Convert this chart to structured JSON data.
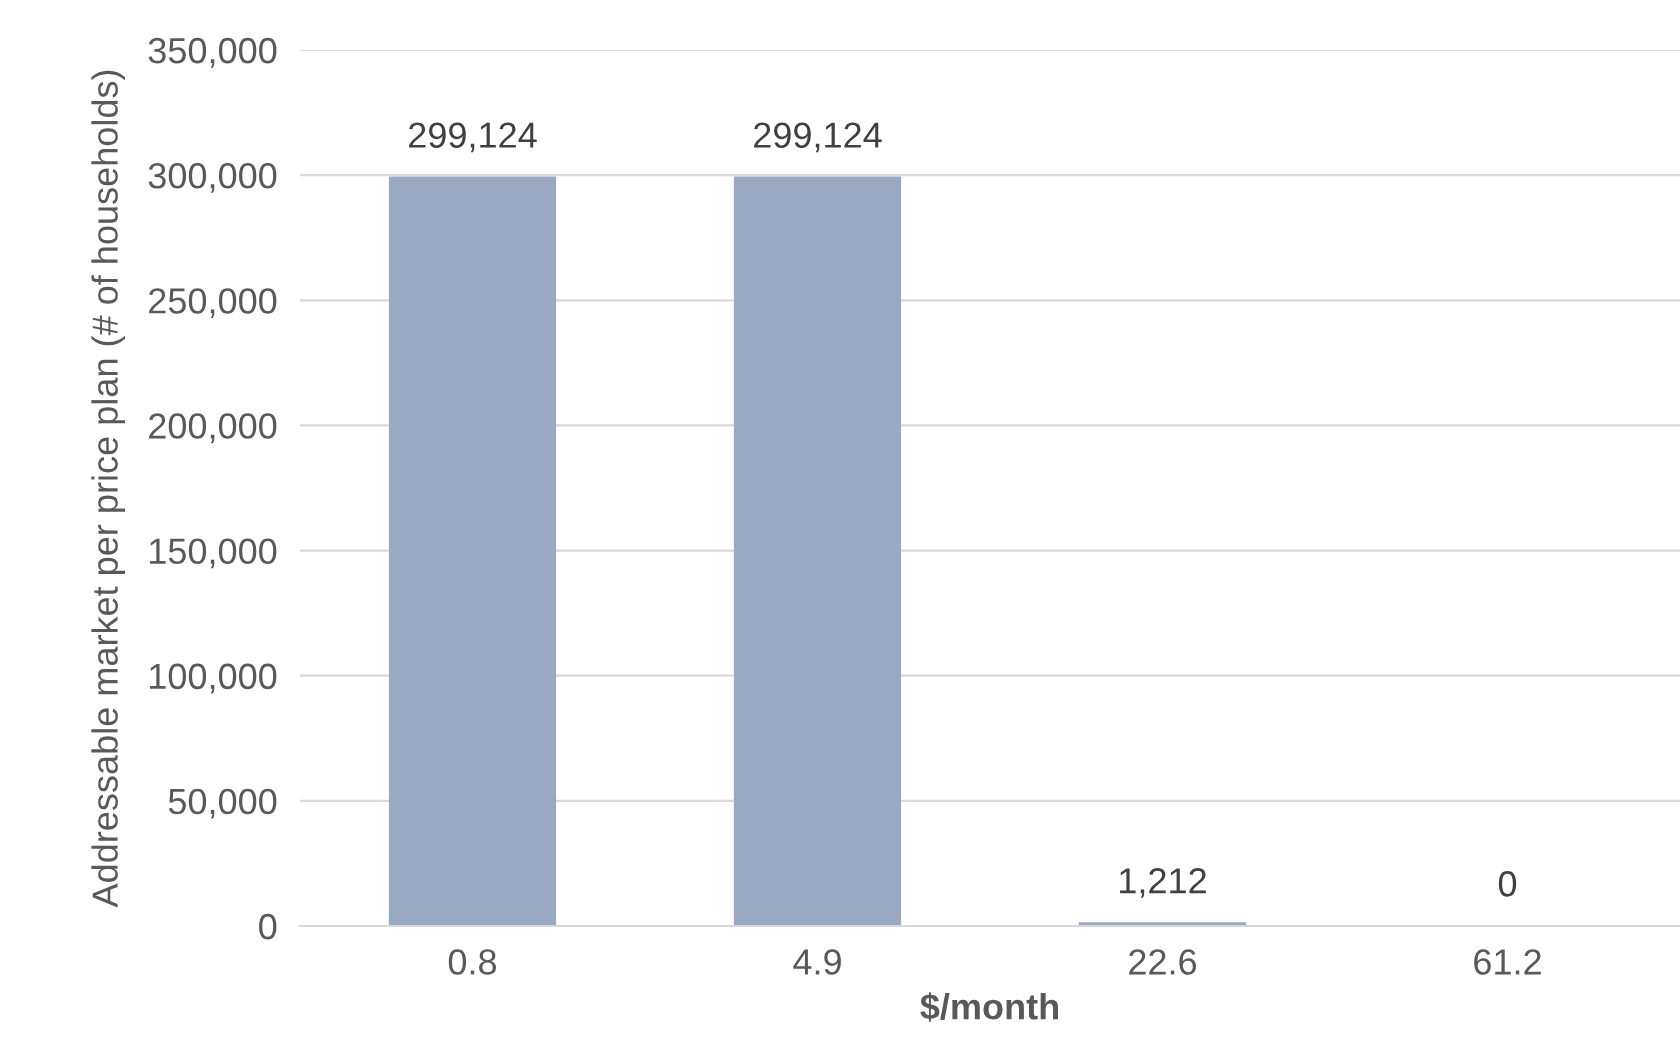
{
  "chart_data": {
    "type": "bar",
    "xlabel": "$/month",
    "ylabel": "Addressable market per price plan (# of households)",
    "categories": [
      "0.8",
      "4.9",
      "22.6",
      "61.2"
    ],
    "series": [
      {
        "color": "#9aa9c1",
        "values": [
          299124,
          299124,
          1212,
          0
        ],
        "value_labels": [
          "299,124",
          "299,124",
          "1,212",
          "0"
        ]
      }
    ],
    "ylim": [
      0,
      350000
    ],
    "yticks": [
      {
        "value": 0,
        "label": "0"
      },
      {
        "value": 50000,
        "label": "50,000"
      },
      {
        "value": 100000,
        "label": "100,000"
      },
      {
        "value": 150000,
        "label": "150,000"
      },
      {
        "value": 200000,
        "label": "200,000"
      },
      {
        "value": 250000,
        "label": "250,000"
      },
      {
        "value": 300000,
        "label": "300,000"
      },
      {
        "value": 350000,
        "label": "350,000"
      }
    ],
    "grid": "y",
    "legend": false
  }
}
